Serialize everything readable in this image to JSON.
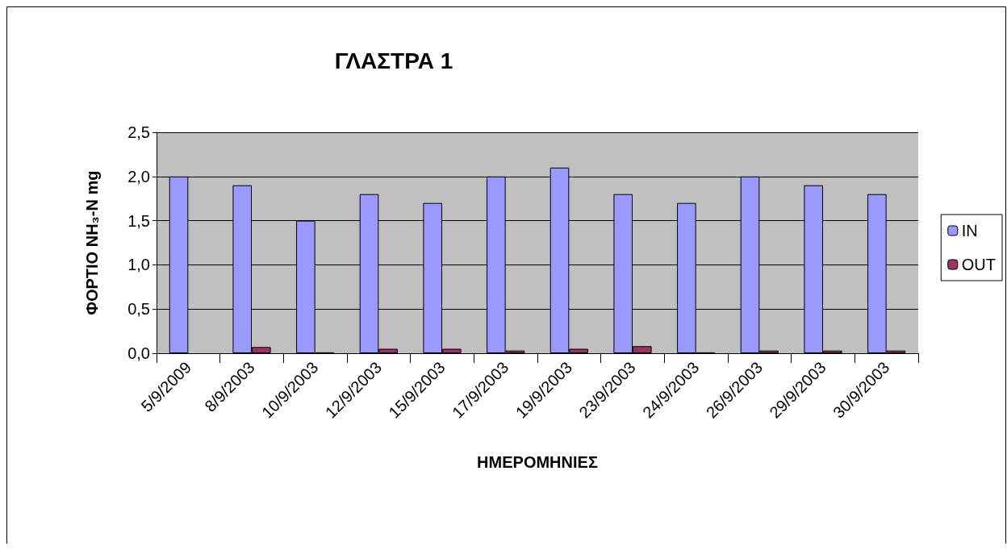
{
  "chart_data": {
    "type": "bar",
    "title": "ΓΛΑΣΤΡΑ 1",
    "xlabel": "ΗΜΕΡΟΜΗΝΙΕΣ",
    "ylabel": "ΦΟΡΤΙΟ NH₃-N mg",
    "categories": [
      "5/9/2009",
      "8/9/2003",
      "10/9/2003",
      "12/9/2003",
      "15/9/2003",
      "17/9/2003",
      "19/9/2003",
      "23/9/2003",
      "24/9/2003",
      "26/9/2003",
      "29/9/2003",
      "30/9/2003"
    ],
    "series": [
      {
        "name": "IN",
        "color": "#9999ff",
        "values": [
          2.0,
          1.9,
          1.5,
          1.8,
          1.7,
          2.0,
          2.1,
          1.8,
          1.7,
          2.0,
          1.9,
          1.8
        ]
      },
      {
        "name": "OUT",
        "color": "#993366",
        "values": [
          null,
          0.07,
          0.01,
          0.05,
          0.05,
          0.03,
          0.05,
          0.08,
          0.01,
          0.03,
          0.03,
          0.03
        ]
      }
    ],
    "ylim": [
      0,
      2.5
    ],
    "yticks": [
      {
        "value": 0,
        "label": "0,0"
      },
      {
        "value": 0.5,
        "label": "0,5"
      },
      {
        "value": 1,
        "label": "1,0"
      },
      {
        "value": 1.5,
        "label": "1,5"
      },
      {
        "value": 2,
        "label": "2,0"
      },
      {
        "value": 2.5,
        "label": "2,5"
      }
    ],
    "grid": "y",
    "legend": "right"
  }
}
